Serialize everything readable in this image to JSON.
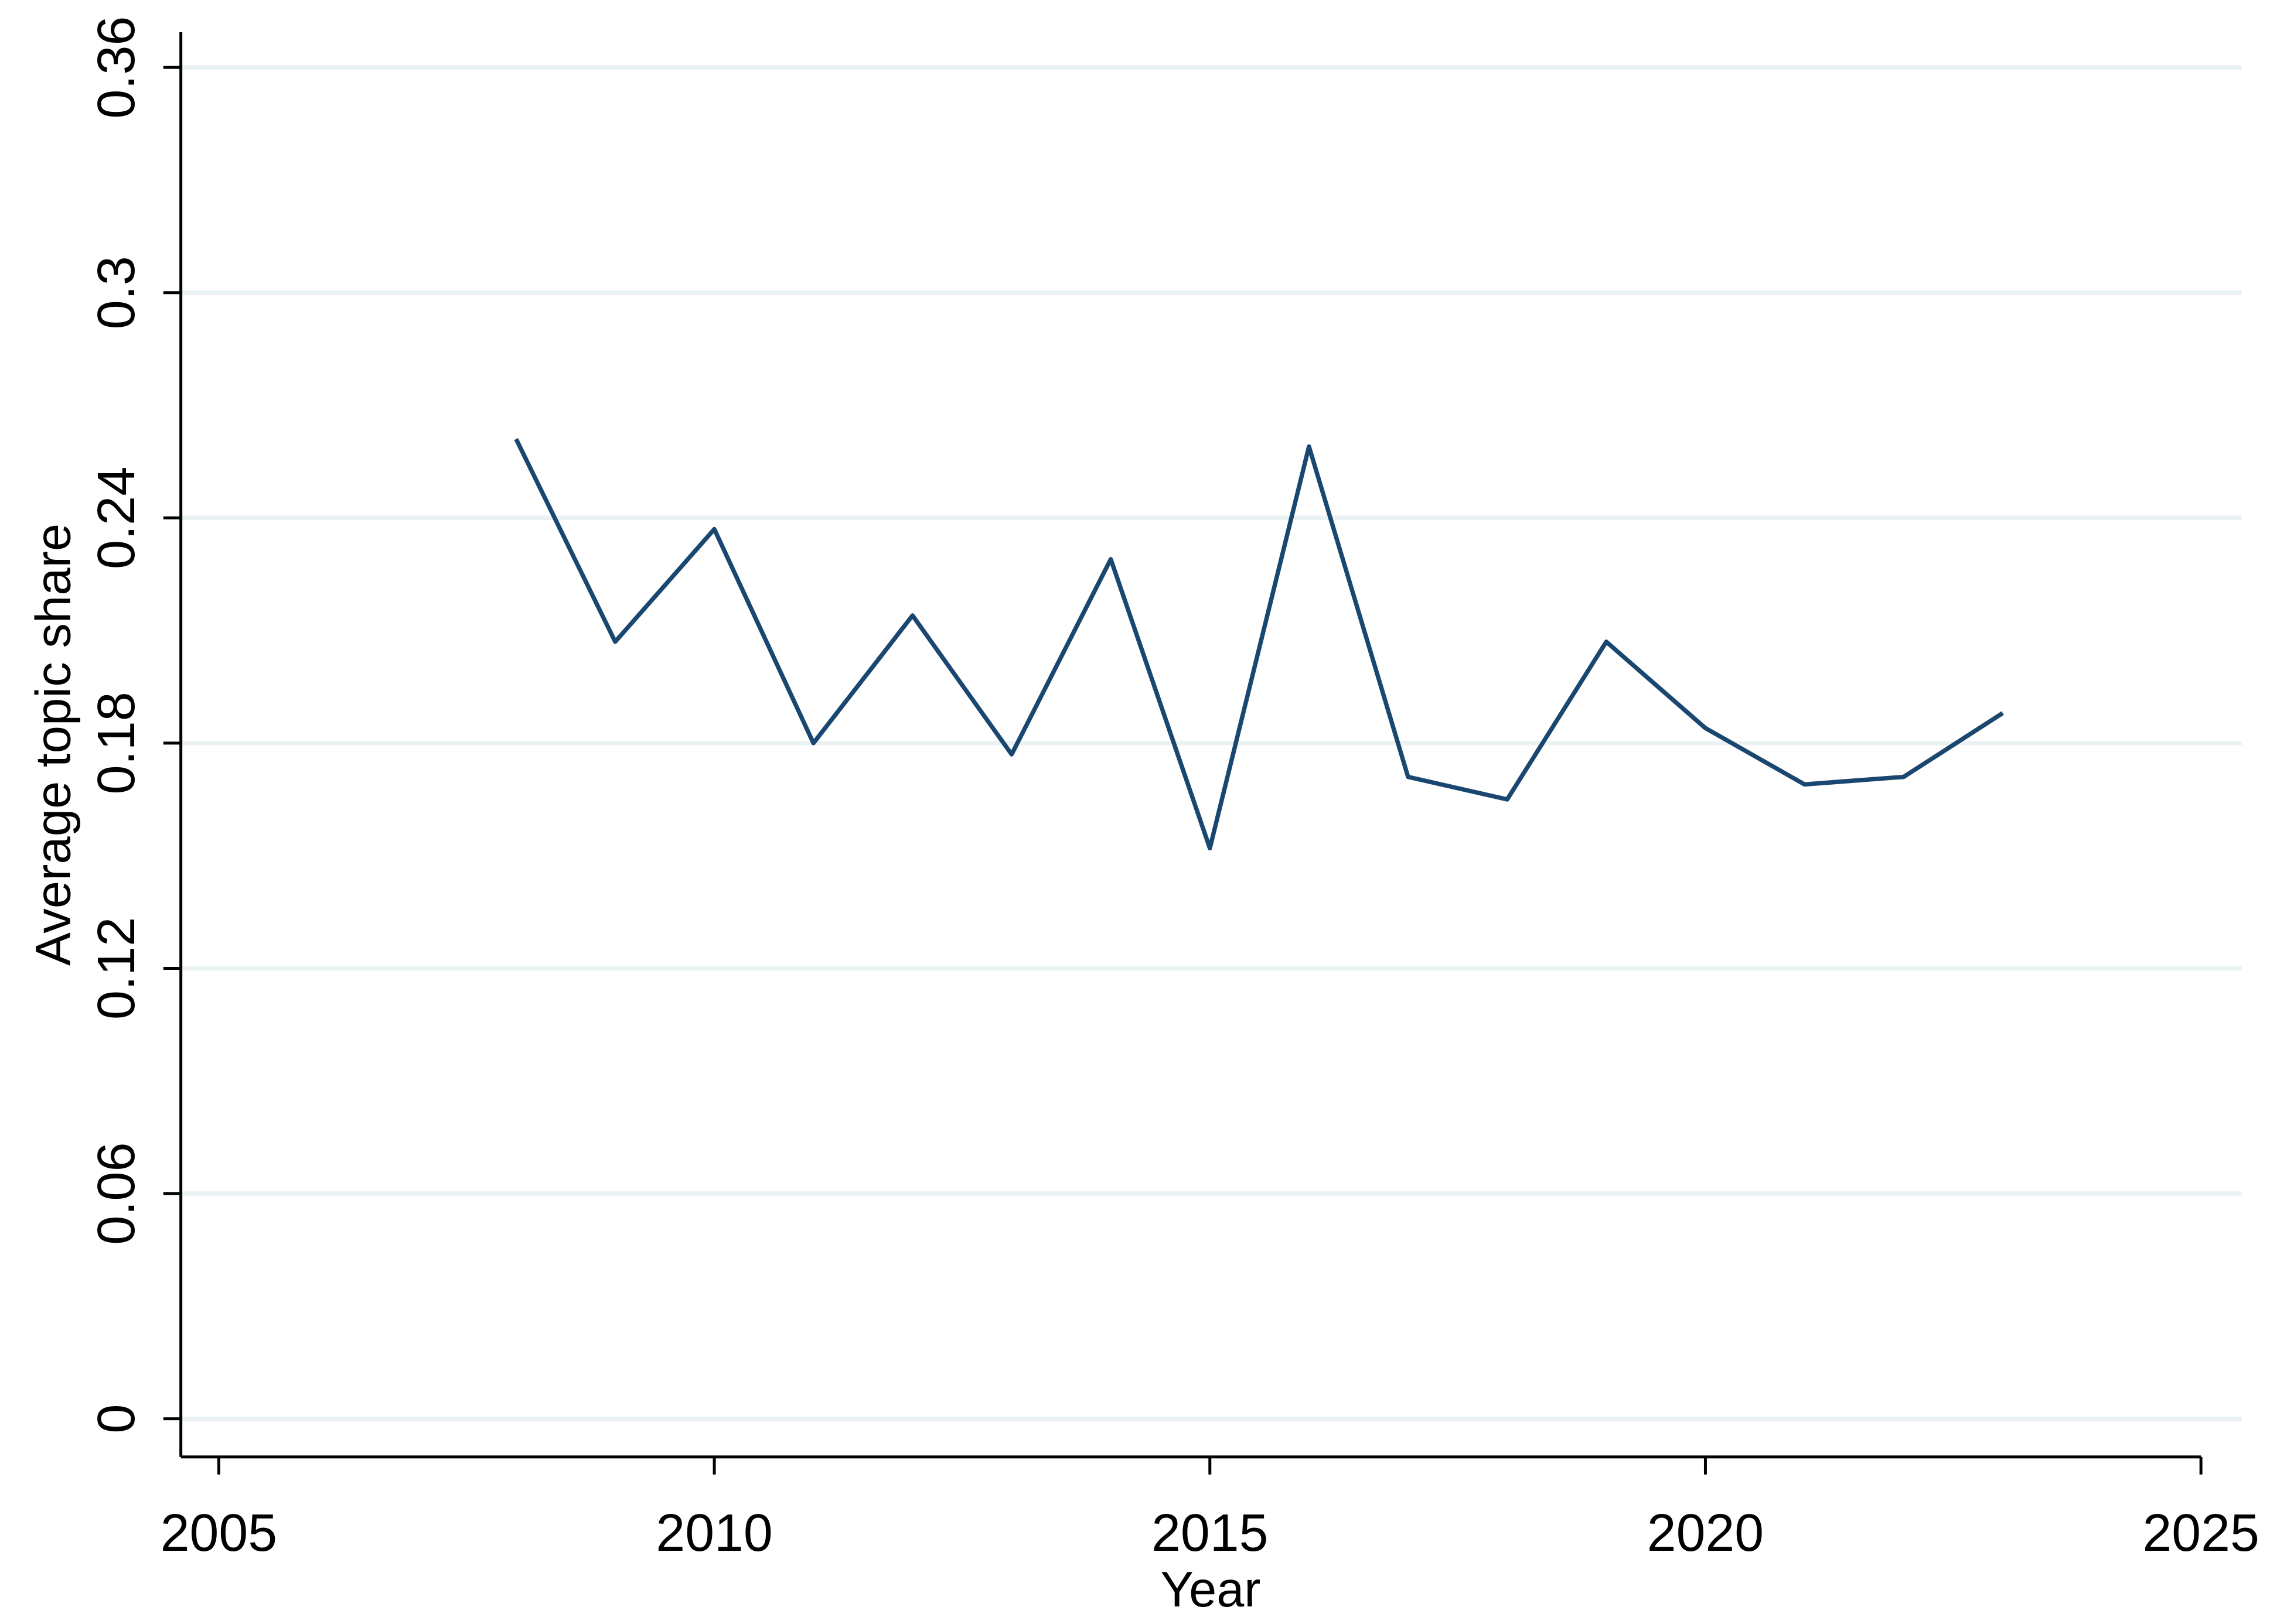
{
  "chart_data": {
    "type": "line",
    "x_label": "Year",
    "y_label": "Average topic share",
    "x": [
      2008,
      2009,
      2010,
      2011,
      2012,
      2013,
      2014,
      2015,
      2016,
      2017,
      2018,
      2019,
      2020,
      2021,
      2022,
      2023
    ],
    "series": [
      {
        "color": "#1a476f",
        "values": [
          0.261,
          0.207,
          0.237,
          0.18,
          0.214,
          0.177,
          0.229,
          0.152,
          0.259,
          0.171,
          0.165,
          0.207,
          0.184,
          0.169,
          0.171,
          0.188
        ]
      }
    ],
    "xlim": [
      2005,
      2025
    ],
    "xticks": [
      2005,
      2010,
      2015,
      2020,
      2025
    ],
    "ylim": [
      0,
      0.36
    ],
    "yticks": [
      0,
      0.06,
      0.12,
      0.18,
      0.24,
      0.3,
      0.36
    ],
    "grid": true
  }
}
